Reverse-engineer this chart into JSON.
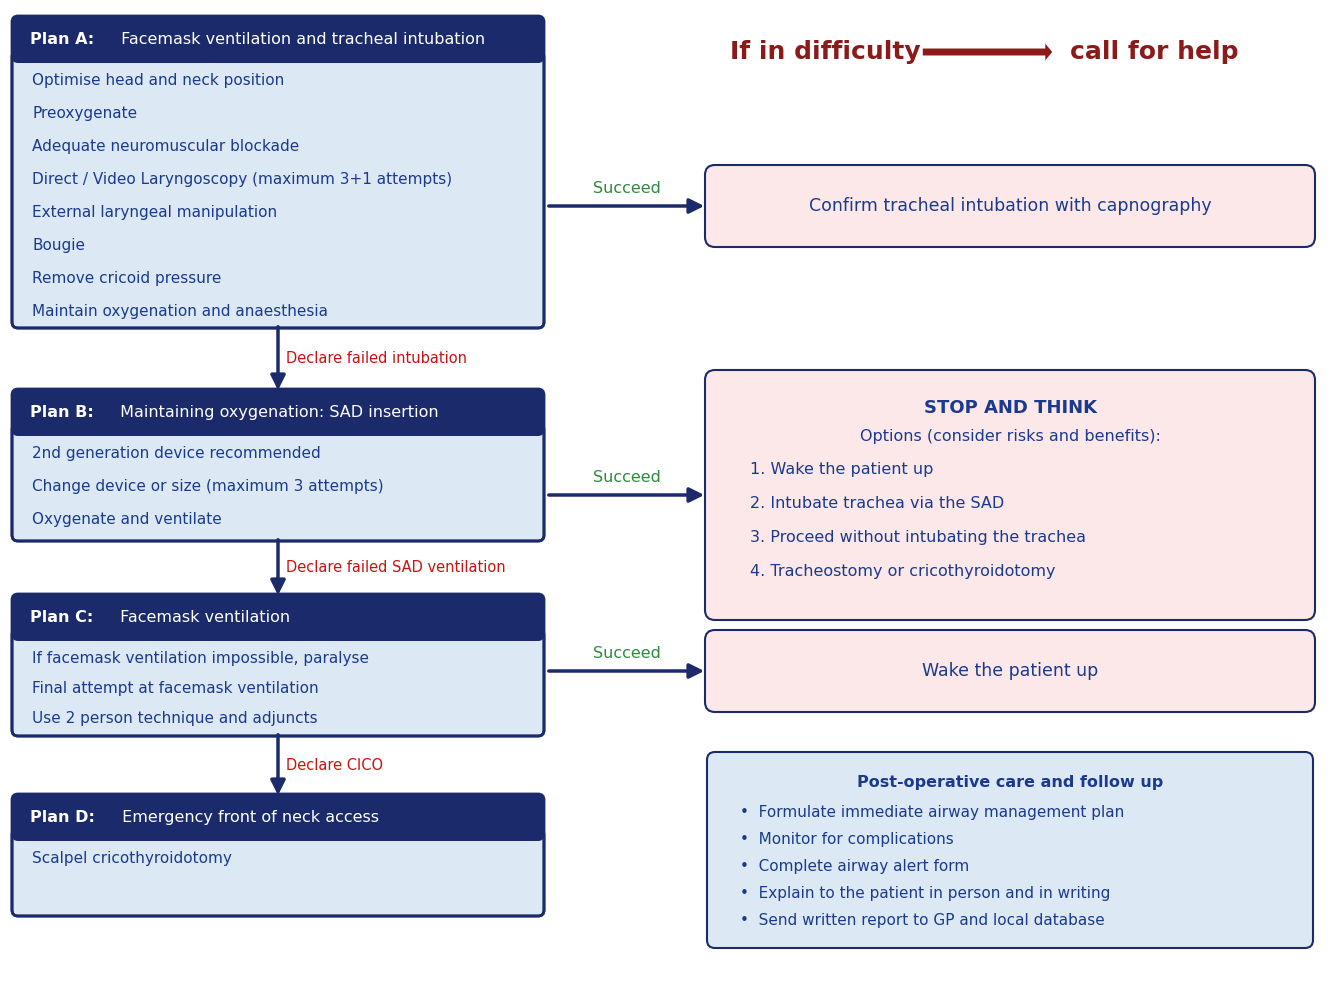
{
  "bg_color": "#ffffff",
  "dark_navy": "#1b2a6b",
  "light_blue_bg": "#dce9f5",
  "light_pink_bg": "#fce8e8",
  "green_arrow": "#2d8a3e",
  "red_text": "#cc1111",
  "dark_red_arrow": "#8b1a1a",
  "body_text_color": "#1a3a8f",
  "plan_a_title": "Plan A: Facemask ventilation and tracheal intubation",
  "plan_a_title_bold": "Plan A:",
  "plan_a_items": [
    "Optimise head and neck position",
    "Preoxygenate",
    "Adequate neuromuscular blockade",
    "Direct / Video Laryngoscopy (maximum 3+1 attempts)",
    "External laryngeal manipulation",
    "Bougie",
    "Remove cricoid pressure",
    "Maintain oxygenation and anaesthesia"
  ],
  "plan_b_title": "Plan B: Maintaining oxygenation: SAD insertion",
  "plan_b_title_bold": "Plan B:",
  "plan_b_items": [
    "2nd generation device recommended",
    "Change device or size (maximum 3 attempts)",
    "Oxygenate and ventilate"
  ],
  "plan_c_title": "Plan C: Facemask ventilation",
  "plan_c_title_bold": "Plan C:",
  "plan_c_items": [
    "If facemask ventilation impossible, paralyse",
    "Final attempt at facemask ventilation",
    "Use 2 person technique and adjuncts"
  ],
  "plan_d_title": "Plan D: Emergency front of neck access",
  "plan_d_title_bold": "Plan D:",
  "plan_d_items": [
    "Scalpel cricothyroidotomy"
  ],
  "right_box1_text": "Confirm tracheal intubation with capnography",
  "right_box2_title": "STOP AND THINK",
  "right_box2_subtitle": "Options (consider risks and benefits):",
  "right_box2_items": [
    "1. Wake the patient up",
    "2. Intubate trachea via the SAD",
    "3. Proceed without intubating the trachea",
    "4. Tracheostomy or cricothyroidotomy"
  ],
  "right_box3_text": "Wake the patient up",
  "right_box4_title": "Post-operative care and follow up",
  "right_box4_items": [
    "Formulate immediate airway management plan",
    "Monitor for complications",
    "Complete airway alert form",
    "Explain to the patient in person and in writing",
    "Send written report to GP and local database"
  ],
  "fail_label1": "Declare failed intubation",
  "fail_label2": "Declare failed SAD ventilation",
  "fail_label3": "Declare CICO",
  "succeed_label": "Succeed",
  "difficulty_text1": "If in difficulty",
  "difficulty_text2": "call for help"
}
